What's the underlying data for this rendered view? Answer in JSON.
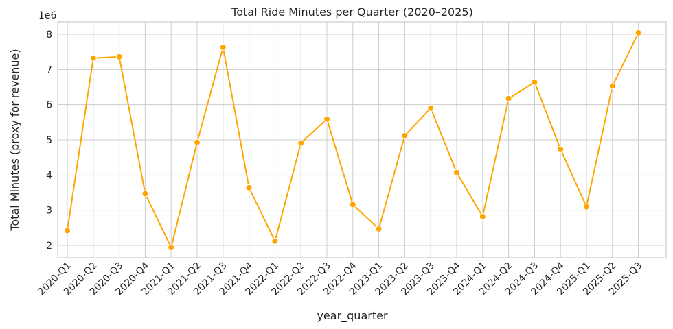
{
  "chart_data": {
    "type": "line",
    "title": "Total Ride Minutes per Quarter (2020–2025)",
    "xlabel": "year_quarter",
    "ylabel": "Total Minutes (proxy for revenue)",
    "y_offset_label": "1e6",
    "categories": [
      "2020-Q1",
      "2020-Q2",
      "2020-Q3",
      "2020-Q4",
      "2021-Q1",
      "2021-Q2",
      "2021-Q3",
      "2021-Q4",
      "2022-Q1",
      "2022-Q2",
      "2022-Q3",
      "2022-Q4",
      "2023-Q1",
      "2023-Q2",
      "2023-Q3",
      "2023-Q4",
      "2024-Q1",
      "2024-Q2",
      "2024-Q3",
      "2024-Q4",
      "2025-Q1",
      "2025-Q2",
      "2025-Q3"
    ],
    "values": [
      2.42,
      7.32,
      7.36,
      3.47,
      1.94,
      4.93,
      7.63,
      3.64,
      2.12,
      4.91,
      5.59,
      3.16,
      2.47,
      5.12,
      5.9,
      4.07,
      2.82,
      6.17,
      6.64,
      4.73,
      3.1,
      6.53,
      8.04
    ],
    "ylim": [
      1.65,
      8.35
    ],
    "yticks": [
      "2",
      "3",
      "4",
      "5",
      "6",
      "7",
      "8"
    ],
    "grid": true,
    "line_color": "#ffa500"
  }
}
